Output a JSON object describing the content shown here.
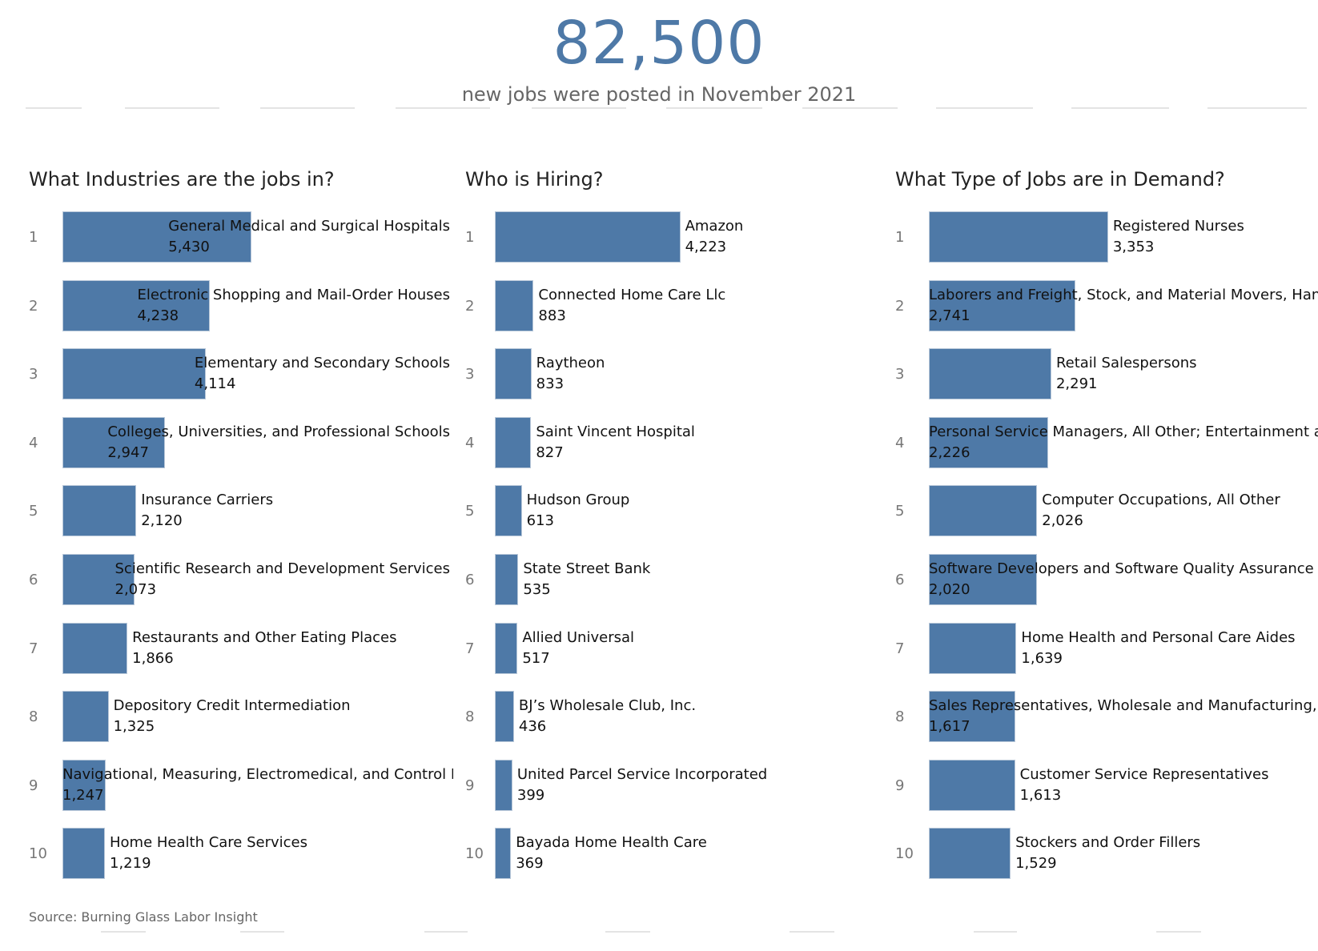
{
  "header": {
    "headline": "82,500",
    "subline": "new jobs were posted in November 2021",
    "accent_color": "#4e79a7"
  },
  "footer": {
    "source": "Source: Burning Glass Labor Insight"
  },
  "chart_data": [
    {
      "type": "bar",
      "orientation": "horizontal",
      "title": "What Industries are the jobs in?",
      "ranks": [
        "1",
        "2",
        "3",
        "4",
        "5",
        "6",
        "7",
        "8",
        "9",
        "10"
      ],
      "categories": [
        "General Medical and Surgical Hospitals",
        "Electronic Shopping and Mail-Order Houses",
        "Elementary and Secondary Schools",
        "Colleges, Universities, and Professional Schools",
        "Insurance Carriers",
        "Scientific Research and Development Services",
        "Restaurants and Other Eating Places",
        "Depository Credit Intermediation",
        "Navigational, Measuring, Electromedical, and Control Instruments Manufacturing",
        "Home Health Care Services"
      ],
      "values": [
        5430,
        4238,
        4114,
        2947,
        2120,
        2073,
        1866,
        1325,
        1247,
        1219
      ],
      "value_labels": [
        "5,430",
        "4,238",
        "4,114",
        "2,947",
        "2,120",
        "2,073",
        "1,866",
        "1,325",
        "1,247",
        "1,219"
      ],
      "xlim": [
        0,
        13200
      ],
      "color": "#4e79a7"
    },
    {
      "type": "bar",
      "orientation": "horizontal",
      "title": "Who is Hiring?",
      "ranks": [
        "1",
        "2",
        "3",
        "4",
        "5",
        "6",
        "7",
        "8",
        "9",
        "10"
      ],
      "categories": [
        "Amazon",
        "Connected Home Care Llc",
        "Raytheon",
        "Saint Vincent Hospital",
        "Hudson Group",
        "State Street Bank",
        "Allied Universal",
        "BJ’s Wholesale Club, Inc.",
        "United Parcel Service Incorporated",
        "Bayada Home Health Care"
      ],
      "values": [
        4223,
        883,
        833,
        827,
        613,
        535,
        517,
        436,
        399,
        369
      ],
      "value_labels": [
        "4,223",
        "883",
        "833",
        "827",
        "613",
        "535",
        "517",
        "436",
        "399",
        "369"
      ],
      "xlim": [
        0,
        9300
      ],
      "color": "#4e79a7"
    },
    {
      "type": "bar",
      "orientation": "horizontal",
      "title": "What Type of Jobs are in Demand?",
      "ranks": [
        "1",
        "2",
        "3",
        "4",
        "5",
        "6",
        "7",
        "8",
        "9",
        "10"
      ],
      "categories": [
        "Registered Nurses",
        "Laborers and Freight, Stock, and Material Movers, Hand",
        "Retail Salespersons",
        "Personal Service Managers, All Other; Entertainment and Recreation Managers",
        "Computer Occupations, All Other",
        "Software Developers and Software Quality Assurance Analysts and Testers",
        "Home Health and Personal Care Aides",
        "Sales Representatives, Wholesale and Manufacturing, Except Technical and Scientific Products",
        "Customer Service Representatives",
        "Stockers and Order Fillers"
      ],
      "values": [
        3353,
        2741,
        2291,
        2226,
        2026,
        2020,
        1639,
        1617,
        1613,
        1529
      ],
      "value_labels": [
        "3,353",
        "2,741",
        "2,291",
        "2,226",
        "2,026",
        "2,020",
        "1,639",
        "1,617",
        "1,613",
        "1,529"
      ],
      "xlim": [
        0,
        7340
      ],
      "color": "#4e79a7"
    }
  ]
}
